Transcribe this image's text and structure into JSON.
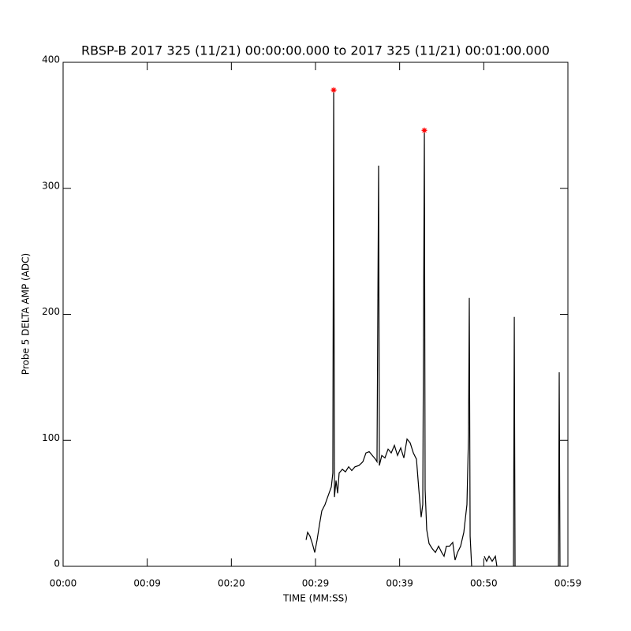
{
  "chart_data": {
    "type": "line",
    "title": "RBSP-B 2017 325 (11/21) 00:00:00.000 to 2017 325 (11/21) 00:01:00.000",
    "x_label": "TIME (MM:SS)",
    "y_label": "Probe 5 DELTA AMP (ADC)",
    "xlim": [
      0,
      60
    ],
    "ylim": [
      0,
      400
    ],
    "xticks": [
      {
        "value": 0,
        "label": "00:00"
      },
      {
        "value": 10,
        "label": "00:09"
      },
      {
        "value": 20,
        "label": "00:20"
      },
      {
        "value": 30,
        "label": "00:29"
      },
      {
        "value": 40,
        "label": "00:39"
      },
      {
        "value": 50,
        "label": "00:50"
      },
      {
        "value": 60,
        "label": "00:59"
      }
    ],
    "yticks": [
      0,
      100,
      200,
      300,
      400
    ],
    "color": "#000000",
    "x": [
      28.88,
      29.06,
      29.34,
      29.63,
      29.91,
      30.19,
      30.47,
      30.75,
      31.13,
      31.5,
      31.88,
      32.06,
      32.16,
      32.25,
      32.44,
      32.63,
      32.81,
      33.19,
      33.56,
      33.94,
      34.31,
      34.69,
      35.16,
      35.63,
      36.0,
      36.38,
      36.75,
      37.13,
      37.31,
      37.5,
      37.59,
      37.88,
      38.25,
      38.63,
      39.0,
      39.38,
      39.75,
      40.13,
      40.5,
      40.88,
      41.25,
      41.63,
      42.0,
      42.28,
      42.56,
      42.75,
      42.94,
      43.03,
      43.22,
      43.5,
      43.88,
      44.25,
      44.63,
      45.0,
      45.28,
      45.56,
      45.94,
      46.31,
      46.59,
      46.88,
      47.25,
      47.63,
      48.0,
      48.19,
      48.28,
      48.38,
      48.56,
      49.22,
      50.06,
      50.34,
      50.63,
      51.0,
      51.38,
      51.56,
      52.5,
      53.53,
      53.63,
      53.72,
      56.25,
      58.88,
      58.97,
      59.06
    ],
    "values": [
      21,
      27,
      24,
      18,
      11,
      21,
      33,
      44,
      49,
      56,
      63,
      74,
      378,
      55,
      68,
      58,
      74,
      77,
      75,
      79,
      76,
      79,
      80,
      83,
      90,
      91,
      88,
      85,
      83,
      318,
      80,
      88,
      86,
      93,
      90,
      96,
      88,
      94,
      86,
      101,
      98,
      90,
      85,
      61,
      39,
      49,
      346,
      61,
      29,
      18,
      14,
      11,
      16,
      11,
      8,
      16,
      16,
      19,
      5,
      11,
      16,
      27,
      49,
      105,
      213,
      24,
      0,
      null,
      8,
      4,
      8,
      4,
      8,
      0,
      null,
      0,
      198,
      0,
      null,
      0,
      154,
      0
    ],
    "peak_markers": {
      "x": [
        32.16,
        42.94
      ],
      "values": [
        378,
        346
      ],
      "color": "#ff0000"
    }
  }
}
